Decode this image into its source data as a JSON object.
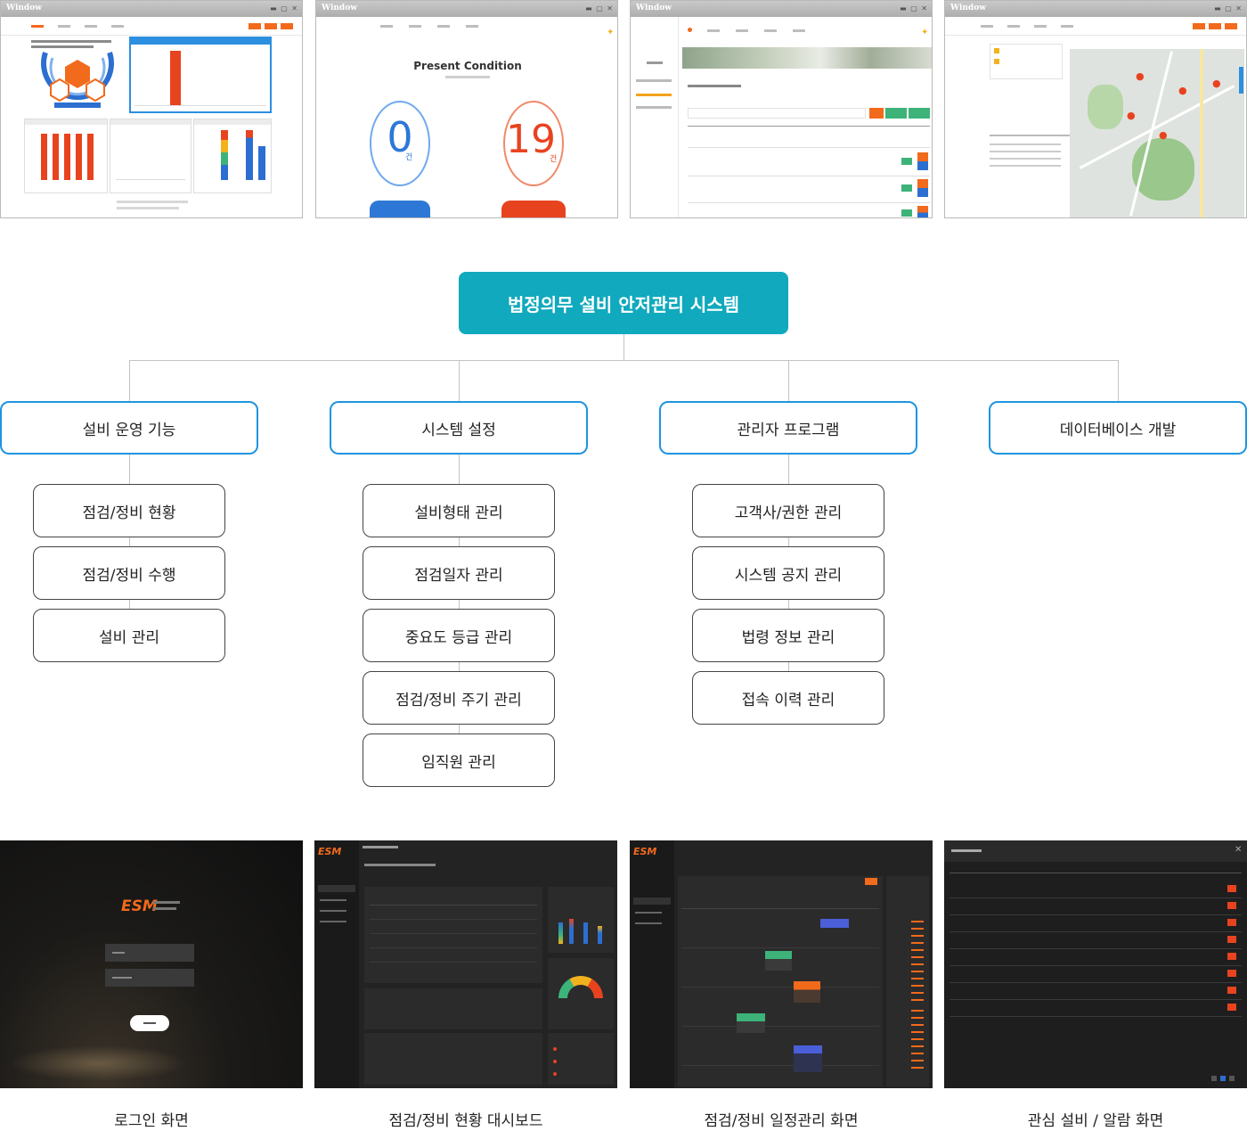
{
  "diagram": {
    "root": "법정의무 설비 안저관리 시스템",
    "categories": [
      {
        "label": "설비 운영 기능",
        "items": [
          "점검/정비 현황",
          "점검/정비 수행",
          "설비 관리"
        ]
      },
      {
        "label": "시스템 설정",
        "items": [
          "설비형태 관리",
          "점검일자 관리",
          "중요도 등급 관리",
          "점검/정비 주기 관리",
          "임직원 관리"
        ]
      },
      {
        "label": "관리자 프로그램",
        "items": [
          "고객사/권한 관리",
          "시스템 공지 관리",
          "법령 정보 관리",
          "접속 이력 관리"
        ]
      },
      {
        "label": "데이터베이스 개발",
        "items": []
      }
    ]
  },
  "top_screens": {
    "window_label": "Window",
    "present_title": "Present Condition",
    "gauge_left_value": "0",
    "gauge_right_value": "19",
    "gauge_unit": "건"
  },
  "bottom_screens": {
    "logo": "ESM",
    "captions": [
      "로그인 화면",
      "점검/정비 현황 대시보드",
      "점검/정비 일정관리 화면",
      "관심 설비 / 알람 화면"
    ]
  },
  "colors": {
    "root_fill": "#10a9bd",
    "category_border": "#1e95df",
    "accent_orange": "#f26a1b",
    "gauge_blue": "#2d78d6",
    "gauge_red": "#e8431f"
  }
}
